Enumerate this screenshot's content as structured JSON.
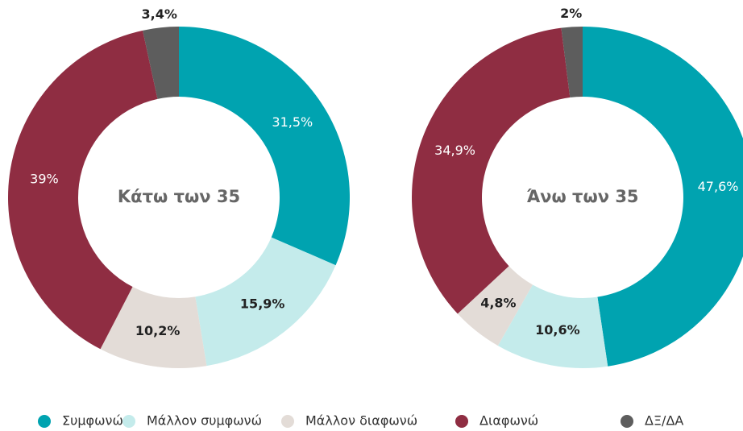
{
  "chart_data": [
    {
      "type": "pie",
      "title": "Κάτω των 35",
      "values": [
        31.5,
        15.9,
        10.2,
        39,
        3.4
      ],
      "value_labels": [
        "31,5%",
        "15,9%",
        "10,2%",
        "39%",
        "3,4%"
      ]
    },
    {
      "type": "pie",
      "title": "Άνω των 35",
      "values": [
        47.6,
        10.6,
        4.8,
        34.9,
        2
      ],
      "value_labels": [
        "47,6%",
        "10,6%",
        "4,8%",
        "34,9%",
        "2%"
      ]
    }
  ],
  "legend": {
    "categories": [
      "Συμφωνώ",
      "Μάλλον συμφωνώ",
      "Μάλλον διαφωνώ",
      "Διαφωνώ",
      "ΔΞ/ΔΑ"
    ],
    "colors": [
      "#00a3b0",
      "#c4ebeb",
      "#e3dcd7",
      "#8f2d42",
      "#5d5d5d"
    ]
  }
}
